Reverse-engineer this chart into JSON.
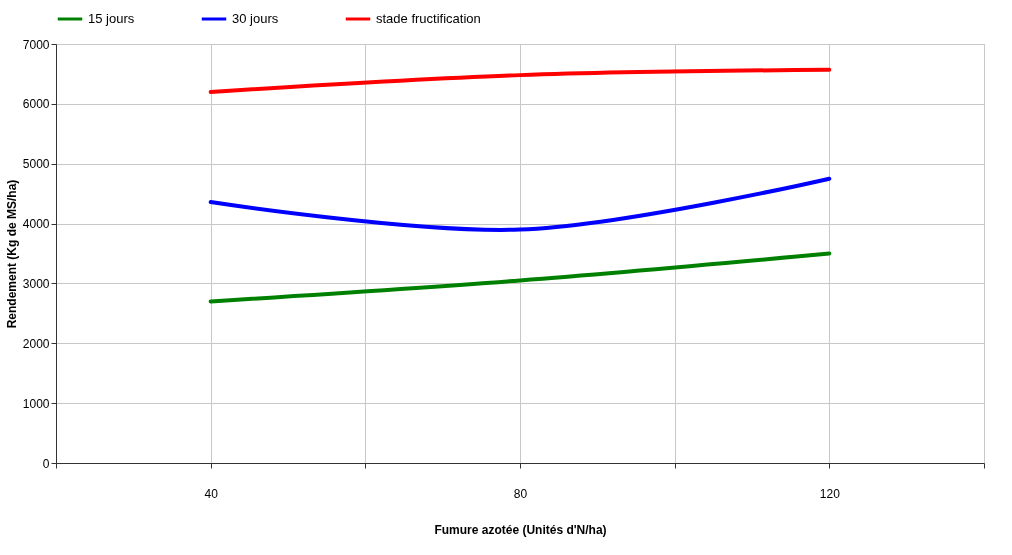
{
  "chart_data": {
    "type": "line",
    "xlabel": "Fumure azotée (Unités d'N/ha)",
    "ylabel": "Rendement (Kg de MS/ha)",
    "x": [
      40,
      80,
      120
    ],
    "series": [
      {
        "name": "15 jours",
        "color": "#008000",
        "values": [
          2700,
          3050,
          3500
        ]
      },
      {
        "name": "30 jours",
        "color": "#0000ff",
        "values": [
          4360,
          3900,
          4750
        ]
      },
      {
        "name": "stade fructification",
        "color": "#ff0000",
        "values": [
          6200,
          6480,
          6570
        ]
      }
    ],
    "xlim": [
      20,
      140
    ],
    "xticks": [
      {
        "value": 20,
        "label": null
      },
      40,
      {
        "value": 60,
        "label": null
      },
      80,
      {
        "value": 100,
        "label": null
      },
      120,
      {
        "value": 140,
        "label": null
      }
    ],
    "ylim": [
      0,
      7000
    ],
    "yticks": [
      0,
      1000,
      2000,
      3000,
      4000,
      5000,
      6000,
      7000
    ],
    "grid": true,
    "legend": "top",
    "marker": "none",
    "line_style": "solid"
  }
}
